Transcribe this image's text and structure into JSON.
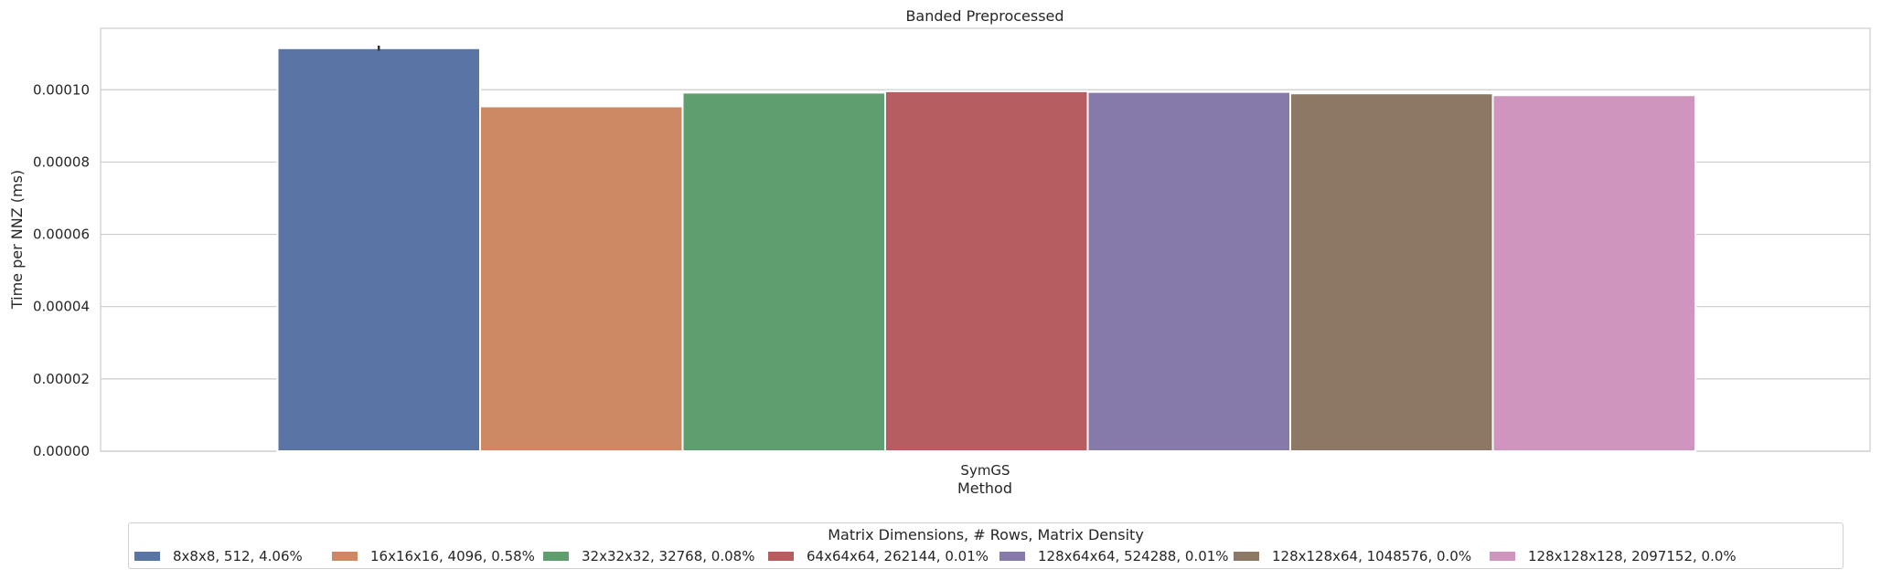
{
  "chart_data": {
    "type": "bar",
    "title": "Banded Preprocessed",
    "xlabel": "Method",
    "ylabel": "Time per NNZ (ms)",
    "categories": [
      "SymGS"
    ],
    "ylim": [
      0,
      0.000117
    ],
    "yticks": [
      "0.00000",
      "0.00002",
      "0.00004",
      "0.00006",
      "0.00008",
      "0.00010"
    ],
    "grid": true,
    "legend_title": "Matrix Dimensions, # Rows, Matrix Density",
    "legend_position": "bottom",
    "series": [
      {
        "name": "8x8x8, 512, 4.06%",
        "values": [
          0.0001115
        ],
        "color": "#5a75a5",
        "error": 7e-07
      },
      {
        "name": "16x16x16, 4096, 0.58%",
        "values": [
          9.54e-05
        ],
        "color": "#cc8963"
      },
      {
        "name": "32x32x32, 32768, 0.08%",
        "values": [
          9.92e-05
        ],
        "color": "#5f9e6e"
      },
      {
        "name": "64x64x64, 262144, 0.01%",
        "values": [
          9.96e-05
        ],
        "color": "#b55d60"
      },
      {
        "name": "128x64x64, 524288, 0.01%",
        "values": [
          9.94e-05
        ],
        "color": "#867aab"
      },
      {
        "name": "128x128x64, 1048576, 0.0%",
        "values": [
          9.9e-05
        ],
        "color": "#8d7866"
      },
      {
        "name": "128x128x128, 2097152, 0.0%",
        "values": [
          9.85e-05
        ],
        "color": "#d095bf"
      }
    ]
  }
}
